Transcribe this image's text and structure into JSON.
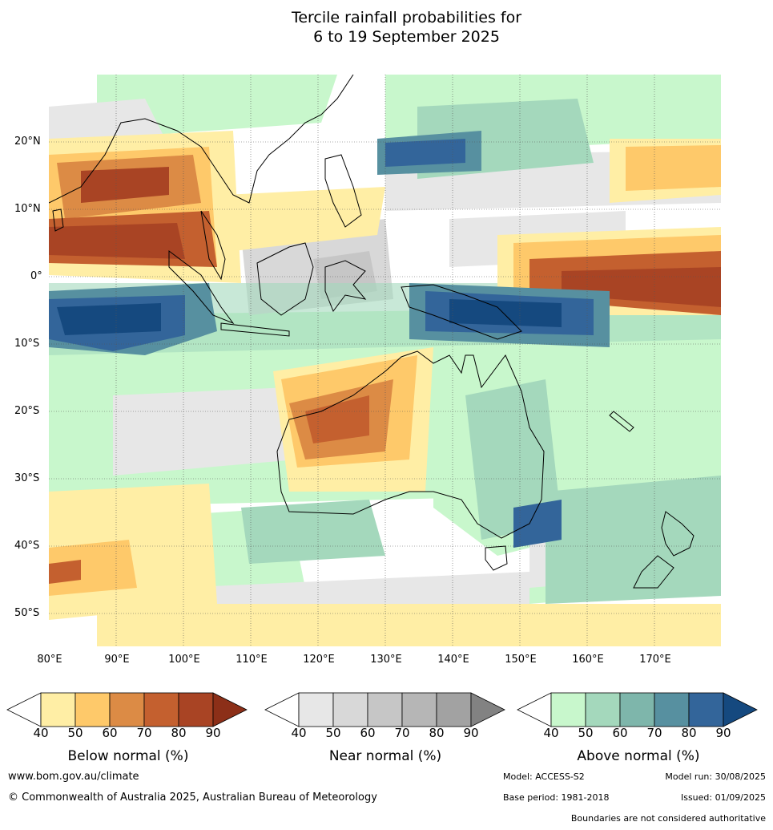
{
  "title_line1": "Tercile rainfall probabilities for",
  "title_line2": "6 to 19 September 2025",
  "lat_labels": [
    "20°N",
    "10°N",
    "0°",
    "10°S",
    "20°S",
    "30°S",
    "40°S",
    "50°S"
  ],
  "lon_labels": [
    "80°E",
    "90°E",
    "100°E",
    "110°E",
    "120°E",
    "130°E",
    "140°E",
    "150°E",
    "160°E",
    "170°E"
  ],
  "colorbars": [
    {
      "label": "Below normal (%)",
      "ticks": [
        "40",
        "50",
        "60",
        "70",
        "80",
        "90"
      ],
      "colors": [
        "#ffeea5",
        "#fec96a",
        "#dc8b45",
        "#c4602f",
        "#a94424",
        "#8c2f18"
      ]
    },
    {
      "label": "Near normal (%)",
      "ticks": [
        "40",
        "50",
        "60",
        "70",
        "80",
        "90"
      ],
      "colors": [
        "#e7e7e7",
        "#d8d8d8",
        "#c6c6c6",
        "#b6b6b6",
        "#a2a2a2",
        "#828282"
      ]
    },
    {
      "label": "Above normal (%)",
      "ticks": [
        "40",
        "50",
        "60",
        "70",
        "80",
        "90"
      ],
      "colors": [
        "#c8f7cc",
        "#a4d8bc",
        "#7eb6ab",
        "#5790a0",
        "#33659a",
        "#15497f"
      ]
    }
  ],
  "footer": {
    "website": "www.bom.gov.au/climate",
    "copyright": "© Commonwealth of Australia 2025, Australian Bureau of Meteorology",
    "model": "Model: ACCESS-S2",
    "model_run": "Model run: 30/08/2025",
    "base_period": "Base period: 1981-2018",
    "issued": "Issued: 01/09/2025",
    "disclaimer": "Boundaries are not considered authoritative"
  }
}
